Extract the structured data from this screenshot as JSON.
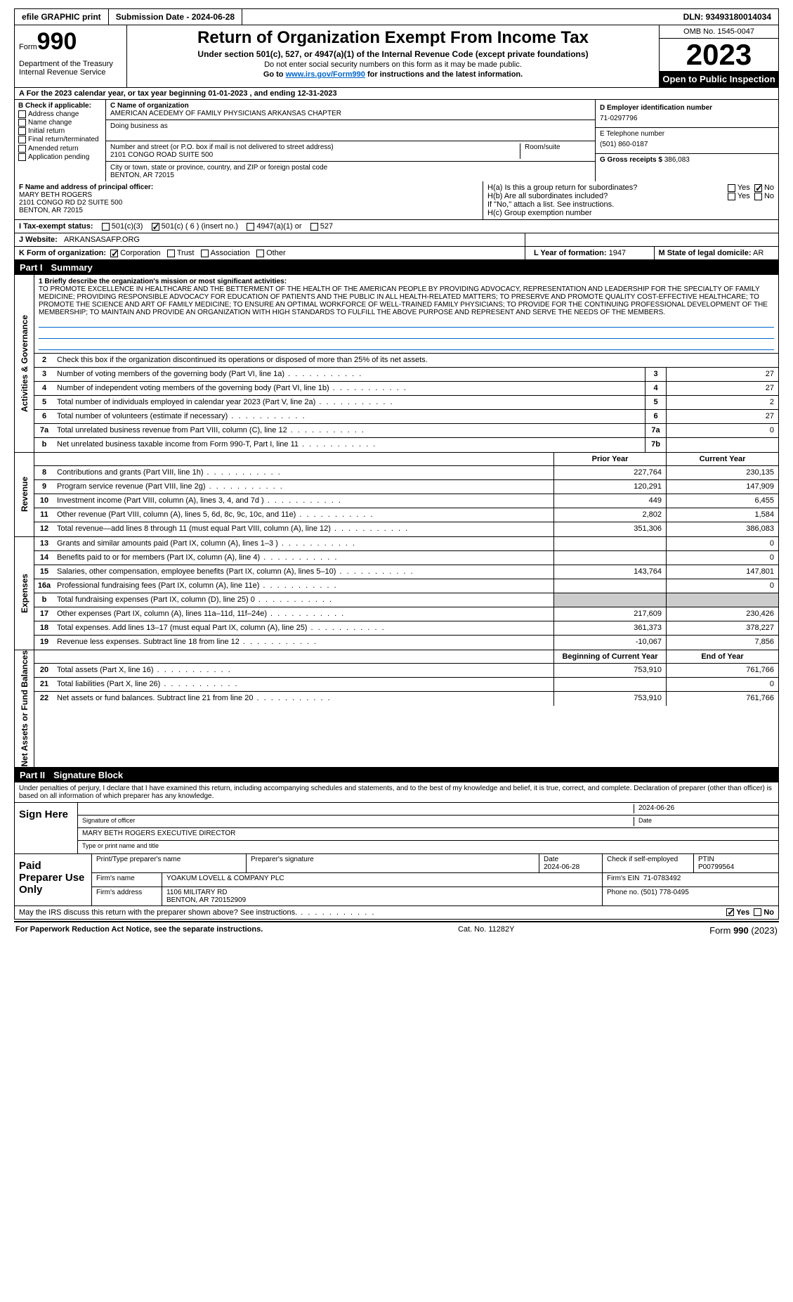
{
  "topbar": {
    "efile": "efile GRAPHIC print",
    "submission": "Submission Date - 2024-06-28",
    "dln": "DLN: 93493180014034"
  },
  "header": {
    "form_prefix": "Form",
    "form_no": "990",
    "dept": "Department of the Treasury\nInternal Revenue Service",
    "title": "Return of Organization Exempt From Income Tax",
    "sub1": "Under section 501(c), 527, or 4947(a)(1) of the Internal Revenue Code (except private foundations)",
    "sub2": "Do not enter social security numbers on this form as it may be made public.",
    "sub3_pre": "Go to ",
    "sub3_link": "www.irs.gov/Form990",
    "sub3_post": " for instructions and the latest information.",
    "omb": "OMB No. 1545-0047",
    "year": "2023",
    "inspect": "Open to Public Inspection"
  },
  "row_a": "A For the 2023 calendar year, or tax year beginning 01-01-2023     , and ending 12-31-2023",
  "col_b": {
    "title": "B Check if applicable:",
    "items": [
      "Address change",
      "Name change",
      "Initial return",
      "Final return/terminated",
      "Amended return",
      "Application pending"
    ]
  },
  "col_c": {
    "name_label": "C Name of organization",
    "name": "AMERICAN ACEDEMY OF FAMILY PHYSICIANS ARKANSAS CHAPTER",
    "dba_label": "Doing business as",
    "dba": "",
    "addr_label": "Number and street (or P.O. box if mail is not delivered to street address)",
    "addr": "2101 CONGO ROAD SUITE 500",
    "room_label": "Room/suite",
    "city_label": "City or town, state or province, country, and ZIP or foreign postal code",
    "city": "BENTON, AR  72015"
  },
  "col_d": {
    "ein_label": "D Employer identification number",
    "ein": "71-0297796",
    "phone_label": "E Telephone number",
    "phone": "(501) 860-0187",
    "gross_label": "G Gross receipts $",
    "gross": "386,083"
  },
  "row_f": {
    "label": "F Name and address of principal officer:",
    "name": "MARY BETH ROGERS",
    "addr1": "2101 CONGO RD D2 SUITE 500",
    "addr2": "BENTON, AR  72015",
    "ha": "H(a)  Is this a group return for subordinates?",
    "ha_yes": "Yes",
    "ha_no": "No",
    "hb": "H(b)  Are all subordinates included?",
    "hb_yes": "Yes",
    "hb_no": "No",
    "hb_note": "If \"No,\" attach a list. See instructions.",
    "hc": "H(c)  Group exemption number"
  },
  "row_i": {
    "label": "I   Tax-exempt status:",
    "o1": "501(c)(3)",
    "o2": "501(c) ( 6 ) (insert no.)",
    "o3": "4947(a)(1) or",
    "o4": "527"
  },
  "row_j": {
    "label": "J   Website:",
    "val": "ARKANSASAFP.ORG"
  },
  "row_k": {
    "label": "K Form of organization:",
    "o1": "Corporation",
    "o2": "Trust",
    "o3": "Association",
    "o4": "Other"
  },
  "row_l": {
    "label": "L Year of formation:",
    "val": "1947"
  },
  "row_m": {
    "label": "M State of legal domicile:",
    "val": "AR"
  },
  "part1": {
    "num": "Part I",
    "title": "Summary"
  },
  "mission": {
    "label": "1   Briefly describe the organization's mission or most significant activities:",
    "text": "TO PROMOTE EXCELLENCE IN HEALTHCARE AND THE BETTERMENT OF THE HEALTH OF THE AMERICAN PEOPLE BY PROVIDING ADVOCACY, REPRESENTATION AND LEADERSHIP FOR THE SPECIALTY OF FAMILY MEDICINE; PROVIDING RESPONSIBLE ADVOCACY FOR EDUCATION OF PATIENTS AND THE PUBLIC IN ALL HEALTH-RELATED MATTERS; TO PRESERVE AND PROMOTE QUALITY COST-EFFECTIVE HEALTHCARE; TO PROMOTE THE SCIENCE AND ART OF FAMILY MEDICINE; TO ENSURE AN OPTIMAL WORKFORCE OF WELL-TRAINED FAMILY PHYSICIANS; TO PROVIDE FOR THE CONTINUING PROFESSIONAL DEVELOPMENT OF THE MEMBERSHIP; TO MAINTAIN AND PROVIDE AN ORGANIZATION WITH HIGH STANDARDS TO FULFILL THE ABOVE PURPOSE AND REPRESENT AND SERVE THE NEEDS OF THE MEMBERS."
  },
  "gov": {
    "side": "Activities & Governance",
    "r2": "Check this box       if the organization discontinued its operations or disposed of more than 25% of its net assets.",
    "rows": [
      {
        "n": "3",
        "t": "Number of voting members of the governing body (Part VI, line 1a)",
        "cn": "3",
        "v": "27"
      },
      {
        "n": "4",
        "t": "Number of independent voting members of the governing body (Part VI, line 1b)",
        "cn": "4",
        "v": "27"
      },
      {
        "n": "5",
        "t": "Total number of individuals employed in calendar year 2023 (Part V, line 2a)",
        "cn": "5",
        "v": "2"
      },
      {
        "n": "6",
        "t": "Total number of volunteers (estimate if necessary)",
        "cn": "6",
        "v": "27"
      },
      {
        "n": "7a",
        "t": "Total unrelated business revenue from Part VIII, column (C), line 12",
        "cn": "7a",
        "v": "0"
      },
      {
        "n": "b",
        "t": "Net unrelated business taxable income from Form 990-T, Part I, line 11",
        "cn": "7b",
        "v": ""
      }
    ]
  },
  "rev": {
    "side": "Revenue",
    "hdr1": "Prior Year",
    "hdr2": "Current Year",
    "rows": [
      {
        "n": "8",
        "t": "Contributions and grants (Part VIII, line 1h)",
        "c1": "227,764",
        "c2": "230,135"
      },
      {
        "n": "9",
        "t": "Program service revenue (Part VIII, line 2g)",
        "c1": "120,291",
        "c2": "147,909"
      },
      {
        "n": "10",
        "t": "Investment income (Part VIII, column (A), lines 3, 4, and 7d )",
        "c1": "449",
        "c2": "6,455"
      },
      {
        "n": "11",
        "t": "Other revenue (Part VIII, column (A), lines 5, 6d, 8c, 9c, 10c, and 11e)",
        "c1": "2,802",
        "c2": "1,584"
      },
      {
        "n": "12",
        "t": "Total revenue—add lines 8 through 11 (must equal Part VIII, column (A), line 12)",
        "c1": "351,306",
        "c2": "386,083"
      }
    ]
  },
  "exp": {
    "side": "Expenses",
    "rows": [
      {
        "n": "13",
        "t": "Grants and similar amounts paid (Part IX, column (A), lines 1–3 )",
        "c1": "",
        "c2": "0"
      },
      {
        "n": "14",
        "t": "Benefits paid to or for members (Part IX, column (A), line 4)",
        "c1": "",
        "c2": "0"
      },
      {
        "n": "15",
        "t": "Salaries, other compensation, employee benefits (Part IX, column (A), lines 5–10)",
        "c1": "143,764",
        "c2": "147,801"
      },
      {
        "n": "16a",
        "t": "Professional fundraising fees (Part IX, column (A), line 11e)",
        "c1": "",
        "c2": "0"
      },
      {
        "n": "b",
        "t": "Total fundraising expenses (Part IX, column (D), line 25) 0",
        "c1": "grey",
        "c2": "grey"
      },
      {
        "n": "17",
        "t": "Other expenses (Part IX, column (A), lines 11a–11d, 11f–24e)",
        "c1": "217,609",
        "c2": "230,426"
      },
      {
        "n": "18",
        "t": "Total expenses. Add lines 13–17 (must equal Part IX, column (A), line 25)",
        "c1": "361,373",
        "c2": "378,227"
      },
      {
        "n": "19",
        "t": "Revenue less expenses. Subtract line 18 from line 12",
        "c1": "-10,067",
        "c2": "7,856"
      }
    ]
  },
  "net": {
    "side": "Net Assets or Fund Balances",
    "hdr1": "Beginning of Current Year",
    "hdr2": "End of Year",
    "rows": [
      {
        "n": "20",
        "t": "Total assets (Part X, line 16)",
        "c1": "753,910",
        "c2": "761,766"
      },
      {
        "n": "21",
        "t": "Total liabilities (Part X, line 26)",
        "c1": "",
        "c2": "0"
      },
      {
        "n": "22",
        "t": "Net assets or fund balances. Subtract line 21 from line 20",
        "c1": "753,910",
        "c2": "761,766"
      }
    ]
  },
  "part2": {
    "num": "Part II",
    "title": "Signature Block"
  },
  "sig": {
    "decl": "Under penalties of perjury, I declare that I have examined this return, including accompanying schedules and statements, and to the best of my knowledge and belief, it is true, correct, and complete. Declaration of preparer (other than officer) is based on all information of which preparer has any knowledge.",
    "sign_here": "Sign Here",
    "sig_label": "Signature of officer",
    "date_label": "Date",
    "sig_date": "2024-06-26",
    "name": "MARY BETH ROGERS EXECUTIVE DIRECTOR",
    "name_label": "Type or print name and title",
    "paid": "Paid Preparer Use Only",
    "prep_name_label": "Print/Type preparer's name",
    "prep_sig_label": "Preparer's signature",
    "prep_date_label": "Date",
    "prep_date": "2024-06-28",
    "check_label": "Check        if self-employed",
    "ptin_label": "PTIN",
    "ptin": "P00799564",
    "firm_label": "Firm's name",
    "firm": "YOAKUM LOVELL & COMPANY PLC",
    "firm_ein_label": "Firm's EIN",
    "firm_ein": "71-0783492",
    "firm_addr_label": "Firm's address",
    "firm_addr": "1106 MILITARY RD",
    "firm_city": "BENTON, AR  720152909",
    "firm_phone_label": "Phone no.",
    "firm_phone": "(501) 778-0495"
  },
  "may": {
    "text": "May the IRS discuss this return with the preparer shown above? See instructions.",
    "yes": "Yes",
    "no": "No"
  },
  "footer": {
    "l": "For Paperwork Reduction Act Notice, see the separate instructions.",
    "m": "Cat. No. 11282Y",
    "r": "Form 990 (2023)"
  }
}
